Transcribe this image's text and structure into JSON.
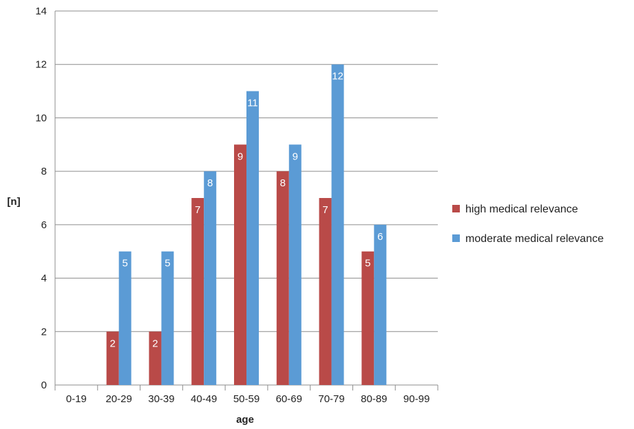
{
  "chart_data": {
    "type": "bar",
    "title": "",
    "xlabel": "age",
    "ylabel": "[n]",
    "ylim": [
      0,
      14
    ],
    "yticks": [
      0,
      2,
      4,
      6,
      8,
      10,
      12,
      14
    ],
    "grid": true,
    "legend_position": "right",
    "categories": [
      "0-19",
      "20-29",
      "30-39",
      "40-49",
      "50-59",
      "60-69",
      "70-79",
      "80-89",
      "90-99"
    ],
    "series": [
      {
        "name": "high medical relevance",
        "color": "#b94a48",
        "values": [
          0,
          2,
          2,
          7,
          9,
          8,
          7,
          5,
          0
        ],
        "labels": [
          "",
          "2",
          "2",
          "7",
          "9",
          "8",
          "7",
          "5",
          ""
        ]
      },
      {
        "name": "moderate medical relevance",
        "color": "#5b9bd5",
        "values": [
          0,
          5,
          5,
          8,
          11,
          9,
          12,
          6,
          0
        ],
        "labels": [
          "",
          "5",
          "5",
          "8",
          "11",
          "9",
          "12",
          "6",
          ""
        ]
      }
    ]
  }
}
